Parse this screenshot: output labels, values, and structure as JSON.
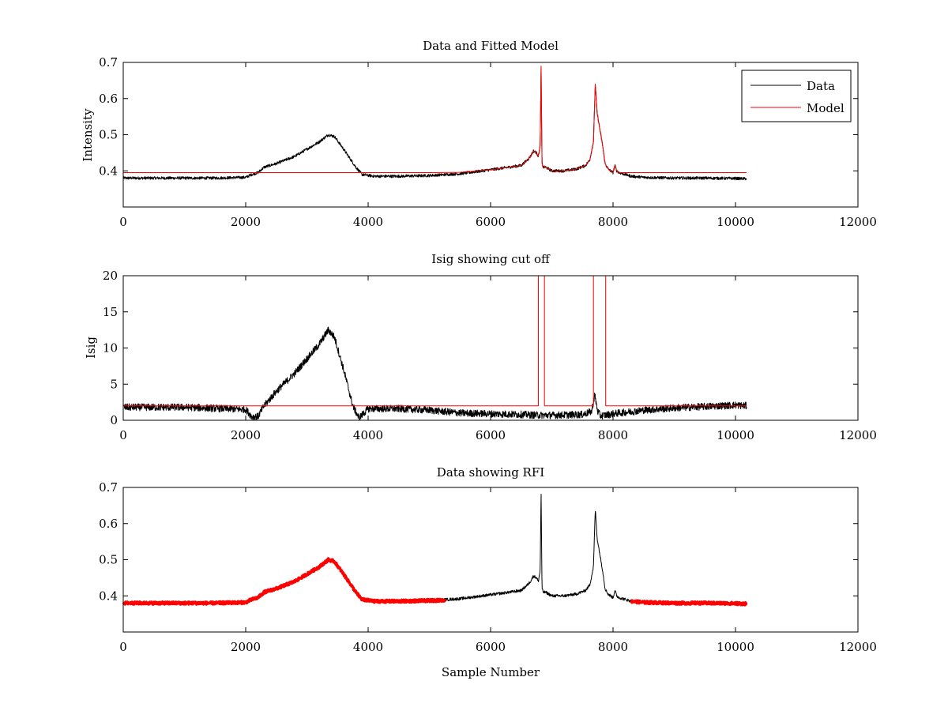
{
  "chart_data": [
    {
      "type": "line",
      "title": "Data and Fitted Model",
      "xlabel": "",
      "ylabel": "Intensity",
      "xlim": [
        0,
        12000
      ],
      "ylim": [
        0.3,
        0.7
      ],
      "xticks": [
        0,
        2000,
        4000,
        6000,
        8000,
        10000,
        12000
      ],
      "yticks": [
        0.4,
        0.5,
        0.6,
        0.7
      ],
      "xtick_labels": [
        "0",
        "2000",
        "4000",
        "6000",
        "8000",
        "10000",
        "12000"
      ],
      "ytick_labels": [
        "0.4",
        "0.5",
        "0.6",
        "0.7"
      ],
      "grid": false,
      "legend": {
        "placement": "top-right",
        "entries": [
          "Data",
          "Model"
        ]
      },
      "series": [
        {
          "name": "Data",
          "color": "#000000",
          "noise": 0.004,
          "x": [
            0,
            500,
            1000,
            1500,
            2000,
            2100,
            2200,
            2300,
            2500,
            2800,
            3000,
            3200,
            3350,
            3450,
            3600,
            3800,
            3900,
            4100,
            4500,
            5000,
            5500,
            6000,
            6300,
            6500,
            6600,
            6650,
            6700,
            6750,
            6780,
            6810,
            6825,
            6840,
            6860,
            6900,
            7000,
            7200,
            7400,
            7550,
            7620,
            7680,
            7710,
            7740,
            7770,
            7800,
            7830,
            7870,
            7920,
            8000,
            8030,
            8060,
            8100,
            8200,
            8300,
            8500,
            9000,
            9500,
            10000,
            10180
          ],
          "y": [
            0.38,
            0.38,
            0.38,
            0.38,
            0.382,
            0.39,
            0.395,
            0.41,
            0.42,
            0.44,
            0.46,
            0.48,
            0.5,
            0.495,
            0.46,
            0.41,
            0.39,
            0.385,
            0.385,
            0.387,
            0.392,
            0.403,
            0.41,
            0.415,
            0.43,
            0.44,
            0.455,
            0.45,
            0.44,
            0.47,
            0.69,
            0.42,
            0.41,
            0.41,
            0.4,
            0.4,
            0.405,
            0.415,
            0.43,
            0.48,
            0.64,
            0.56,
            0.53,
            0.5,
            0.47,
            0.42,
            0.405,
            0.395,
            0.415,
            0.4,
            0.395,
            0.39,
            0.385,
            0.382,
            0.38,
            0.38,
            0.379,
            0.378
          ]
        },
        {
          "name": "Model",
          "color": "#ff0000",
          "noise": 0,
          "x": [
            0,
            3000,
            5000,
            5500,
            6000,
            6300,
            6500,
            6600,
            6650,
            6700,
            6750,
            6780,
            6810,
            6825,
            6840,
            6860,
            6900,
            7000,
            7200,
            7400,
            7550,
            7620,
            7680,
            7710,
            7740,
            7770,
            7800,
            7830,
            7870,
            7920,
            8000,
            8030,
            8060,
            8100,
            8200,
            10180
          ],
          "y": [
            0.395,
            0.395,
            0.395,
            0.396,
            0.403,
            0.41,
            0.415,
            0.43,
            0.44,
            0.455,
            0.45,
            0.44,
            0.47,
            0.69,
            0.42,
            0.41,
            0.41,
            0.4,
            0.4,
            0.405,
            0.415,
            0.43,
            0.48,
            0.64,
            0.56,
            0.53,
            0.5,
            0.47,
            0.42,
            0.405,
            0.395,
            0.415,
            0.4,
            0.395,
            0.395,
            0.395
          ]
        }
      ]
    },
    {
      "type": "line",
      "title": "Isig showing cut off",
      "xlabel": "",
      "ylabel": "Isig",
      "xlim": [
        0,
        12000
      ],
      "ylim": [
        0,
        20
      ],
      "xticks": [
        0,
        2000,
        4000,
        6000,
        8000,
        10000,
        12000
      ],
      "yticks": [
        0,
        5,
        10,
        15,
        20
      ],
      "xtick_labels": [
        "0",
        "2000",
        "4000",
        "6000",
        "8000",
        "10000",
        "12000"
      ],
      "ytick_labels": [
        "0",
        "5",
        "10",
        "15",
        "20"
      ],
      "grid": false,
      "series": [
        {
          "color": "#000000",
          "noise": 0.5,
          "x": [
            0,
            1000,
            2000,
            2100,
            2200,
            2300,
            2500,
            2800,
            3000,
            3200,
            3350,
            3450,
            3600,
            3750,
            3850,
            4000,
            4500,
            5000,
            5500,
            6000,
            6500,
            6800,
            7000,
            7500,
            7650,
            7700,
            7750,
            7800,
            8000,
            8500,
            9000,
            9500,
            10000,
            10180
          ],
          "y": [
            1.8,
            1.8,
            1.5,
            0.5,
            0.5,
            2.0,
            4.0,
            6.5,
            8.5,
            10.5,
            12.5,
            11.5,
            7.0,
            2.0,
            0.3,
            1.6,
            1.6,
            1.4,
            1.0,
            0.9,
            0.8,
            0.7,
            0.7,
            0.8,
            1.2,
            3.5,
            1.2,
            0.6,
            0.9,
            1.4,
            1.7,
            1.9,
            2.1,
            2.0
          ]
        },
        {
          "color": "#ff0000",
          "noise": 0,
          "x": [
            0,
            6780,
            6780,
            6880,
            6880,
            7680,
            7680,
            7880,
            7880,
            10180
          ],
          "y": [
            2,
            2,
            20,
            20,
            2,
            2,
            20,
            20,
            2,
            2
          ]
        }
      ]
    },
    {
      "type": "line",
      "title": "Data showing RFI",
      "xlabel": "Sample Number",
      "ylabel": "",
      "xlim": [
        0,
        12000
      ],
      "ylim": [
        0.3,
        0.7
      ],
      "xticks": [
        0,
        2000,
        4000,
        6000,
        8000,
        10000,
        12000
      ],
      "yticks": [
        0.4,
        0.5,
        0.6,
        0.7
      ],
      "xtick_labels": [
        "0",
        "2000",
        "4000",
        "6000",
        "8000",
        "10000",
        "12000"
      ],
      "ytick_labels": [
        "0.4",
        "0.5",
        "0.6",
        "0.7"
      ],
      "grid": false,
      "series": [
        {
          "color": "#000000",
          "noise": 0.004,
          "x": [
            0,
            500,
            1000,
            1500,
            2000,
            2100,
            2200,
            2300,
            2500,
            2800,
            3000,
            3200,
            3350,
            3450,
            3600,
            3800,
            3900,
            4100,
            4500,
            5000,
            5500,
            6000,
            6300,
            6500,
            6600,
            6650,
            6700,
            6750,
            6780,
            6810,
            6825,
            6840,
            6860,
            6900,
            7000,
            7200,
            7400,
            7550,
            7620,
            7680,
            7710,
            7740,
            7770,
            7800,
            7830,
            7870,
            7920,
            8000,
            8030,
            8060,
            8100,
            8200,
            8300,
            8500,
            9000,
            9500,
            10000,
            10180
          ],
          "y": [
            0.38,
            0.38,
            0.38,
            0.38,
            0.382,
            0.39,
            0.395,
            0.41,
            0.42,
            0.44,
            0.46,
            0.48,
            0.5,
            0.495,
            0.46,
            0.41,
            0.39,
            0.385,
            0.385,
            0.387,
            0.392,
            0.403,
            0.41,
            0.415,
            0.43,
            0.44,
            0.455,
            0.45,
            0.44,
            0.47,
            0.69,
            0.42,
            0.41,
            0.41,
            0.4,
            0.4,
            0.405,
            0.415,
            0.43,
            0.48,
            0.64,
            0.56,
            0.53,
            0.5,
            0.47,
            0.42,
            0.405,
            0.395,
            0.415,
            0.4,
            0.395,
            0.39,
            0.385,
            0.382,
            0.38,
            0.38,
            0.379,
            0.378
          ]
        },
        {
          "color": "#ff0000",
          "noise": 0.004,
          "thick": true,
          "x": [
            0,
            500,
            1000,
            1500,
            2000,
            2100,
            2200,
            2300,
            2500,
            2800,
            3000,
            3200,
            3350,
            3450,
            3600,
            3800,
            3900,
            4100,
            4500,
            5000,
            5250
          ],
          "y": [
            0.38,
            0.38,
            0.38,
            0.38,
            0.382,
            0.39,
            0.395,
            0.41,
            0.42,
            0.44,
            0.46,
            0.48,
            0.5,
            0.495,
            0.46,
            0.41,
            0.39,
            0.385,
            0.385,
            0.387,
            0.388
          ]
        },
        {
          "color": "#ff0000",
          "noise": 0.004,
          "thick": true,
          "x": [
            8300,
            8500,
            9000,
            9500,
            10000,
            10180
          ],
          "y": [
            0.385,
            0.382,
            0.38,
            0.38,
            0.379,
            0.378
          ]
        }
      ]
    }
  ]
}
